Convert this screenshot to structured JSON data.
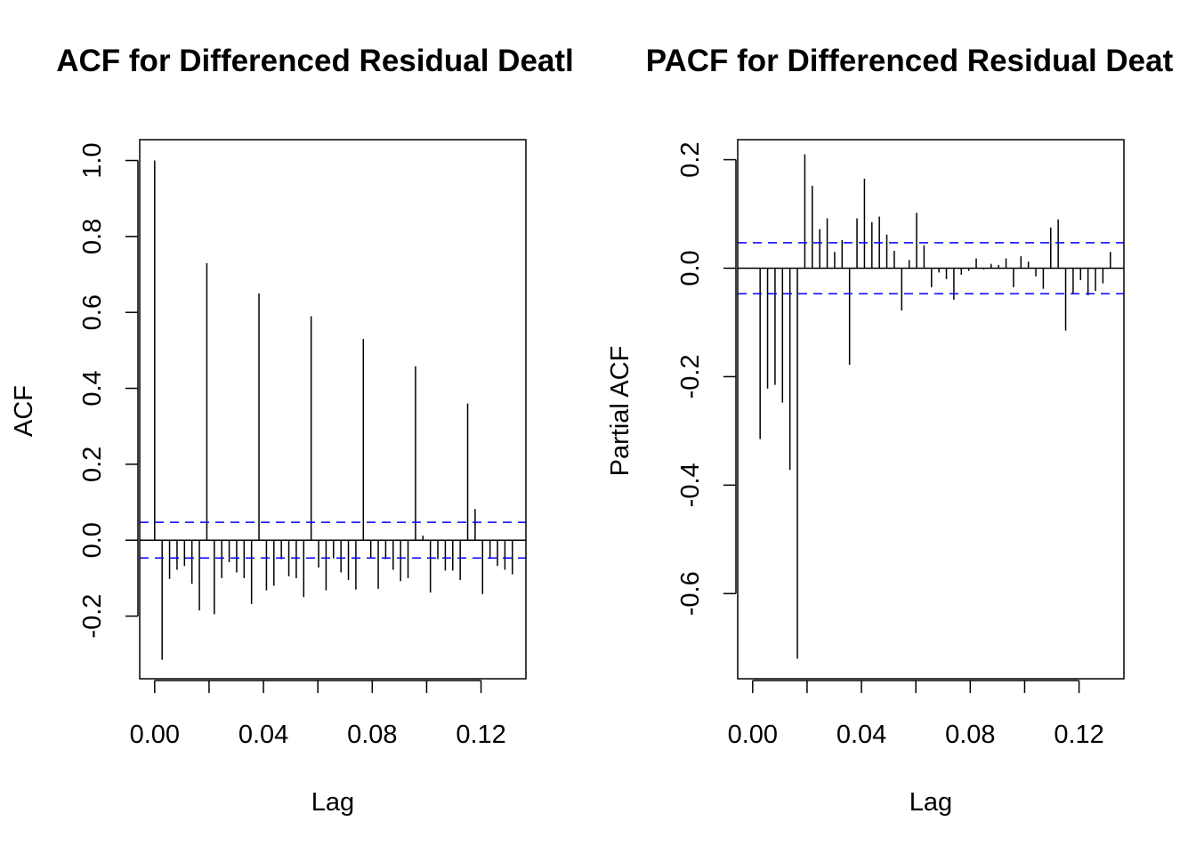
{
  "chart_data": [
    {
      "type": "bar",
      "title": "ACF for Differenced Residual Deatl",
      "xlabel": "Lag",
      "ylabel": "ACF",
      "xlim": [
        -0.0055,
        0.1365
      ],
      "ylim": [
        -0.365,
        1.055
      ],
      "x_ticks": [
        {
          "value": 0.0,
          "label": "0.00"
        },
        {
          "value": 0.02,
          "label": ""
        },
        {
          "value": 0.04,
          "label": "0.04"
        },
        {
          "value": 0.06,
          "label": ""
        },
        {
          "value": 0.08,
          "label": "0.08"
        },
        {
          "value": 0.1,
          "label": ""
        },
        {
          "value": 0.12,
          "label": "0.12"
        }
      ],
      "y_ticks": [
        {
          "value": -0.2,
          "label": "-0.2"
        },
        {
          "value": 0.0,
          "label": "0.0"
        },
        {
          "value": 0.2,
          "label": "0.2"
        },
        {
          "value": 0.4,
          "label": "0.4"
        },
        {
          "value": 0.6,
          "label": "0.6"
        },
        {
          "value": 0.8,
          "label": "0.8"
        },
        {
          "value": 1.0,
          "label": "1.0"
        }
      ],
      "confidence_band": 0.047,
      "lag_step": 0.00274,
      "values": [
        1.0,
        -0.315,
        -0.102,
        -0.078,
        -0.068,
        -0.115,
        -0.185,
        0.73,
        -0.195,
        -0.1,
        -0.058,
        -0.085,
        -0.1,
        -0.168,
        0.65,
        -0.132,
        -0.12,
        -0.05,
        -0.095,
        -0.1,
        -0.15,
        0.59,
        -0.072,
        -0.132,
        -0.048,
        -0.085,
        -0.105,
        -0.13,
        0.53,
        -0.048,
        -0.128,
        -0.05,
        -0.078,
        -0.108,
        -0.1,
        0.458,
        0.012,
        -0.138,
        -0.05,
        -0.08,
        -0.08,
        -0.105,
        0.36,
        0.082,
        -0.142,
        -0.048,
        -0.068,
        -0.078,
        -0.09
      ]
    },
    {
      "type": "bar",
      "title": "PACF for Differenced Residual Deat",
      "xlabel": "Lag",
      "ylabel": "Partial ACF",
      "xlim": [
        -0.0055,
        0.1365
      ],
      "ylim": [
        -0.757,
        0.237
      ],
      "x_ticks": [
        {
          "value": 0.0,
          "label": "0.00"
        },
        {
          "value": 0.02,
          "label": ""
        },
        {
          "value": 0.04,
          "label": "0.04"
        },
        {
          "value": 0.06,
          "label": ""
        },
        {
          "value": 0.08,
          "label": "0.08"
        },
        {
          "value": 0.1,
          "label": ""
        },
        {
          "value": 0.12,
          "label": "0.12"
        }
      ],
      "y_ticks": [
        {
          "value": -0.6,
          "label": "-0.6"
        },
        {
          "value": -0.4,
          "label": "-0.4"
        },
        {
          "value": -0.2,
          "label": "-0.2"
        },
        {
          "value": 0.0,
          "label": "0.0"
        },
        {
          "value": 0.2,
          "label": "0.2"
        }
      ],
      "confidence_band": 0.047,
      "lag_step": 0.00274,
      "values": [
        -0.315,
        -0.222,
        -0.215,
        -0.248,
        -0.372,
        -0.72,
        0.21,
        0.152,
        0.072,
        0.092,
        0.03,
        0.052,
        -0.178,
        0.092,
        0.165,
        0.085,
        0.095,
        0.062,
        0.032,
        -0.078,
        0.015,
        0.102,
        0.042,
        -0.035,
        -0.008,
        -0.02,
        -0.058,
        -0.012,
        -0.005,
        0.018,
        -0.002,
        0.008,
        0.006,
        0.018,
        -0.035,
        0.022,
        0.012,
        -0.015,
        -0.038,
        0.075,
        0.09,
        -0.115,
        -0.048,
        -0.022,
        -0.05,
        -0.042,
        -0.028,
        0.03
      ]
    }
  ]
}
